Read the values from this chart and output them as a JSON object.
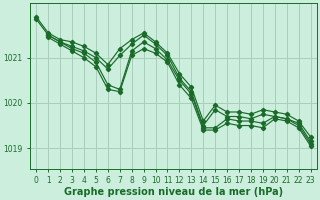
{
  "background_color": "#cceedd",
  "grid_color": "#aaccbb",
  "line_color": "#1a6b2a",
  "title": "Graphe pression niveau de la mer (hPa)",
  "title_fontsize": 7,
  "tick_fontsize": 5.5,
  "xlim": [
    -0.5,
    23.5
  ],
  "ylim": [
    1018.55,
    1022.2
  ],
  "yticks": [
    1019,
    1020,
    1021
  ],
  "xticks": [
    0,
    1,
    2,
    3,
    4,
    5,
    6,
    7,
    8,
    9,
    10,
    11,
    12,
    13,
    14,
    15,
    16,
    17,
    18,
    19,
    20,
    21,
    22,
    23
  ],
  "series": [
    {
      "x": [
        0,
        1,
        2,
        3,
        4,
        5,
        6,
        7,
        8,
        9,
        10,
        11,
        12,
        13,
        14,
        15,
        16,
        17,
        18,
        19,
        20,
        21,
        22,
        23
      ],
      "y": [
        1021.9,
        1021.55,
        1021.4,
        1021.35,
        1021.25,
        1021.1,
        1020.85,
        1021.2,
        1021.4,
        1021.55,
        1021.35,
        1021.1,
        1020.65,
        1020.35,
        1019.6,
        1019.95,
        1019.8,
        1019.8,
        1019.75,
        1019.85,
        1019.8,
        1019.75,
        1019.6,
        1019.25
      ]
    },
    {
      "x": [
        0,
        1,
        2,
        3,
        4,
        5,
        6,
        7,
        8,
        9,
        10,
        11,
        12,
        13,
        14,
        15,
        16,
        17,
        18,
        19,
        20,
        21,
        22,
        23
      ],
      "y": [
        1021.85,
        1021.5,
        1021.35,
        1021.25,
        1021.15,
        1021.0,
        1020.75,
        1021.05,
        1021.3,
        1021.5,
        1021.3,
        1021.05,
        1020.55,
        1020.25,
        1019.5,
        1019.85,
        1019.7,
        1019.7,
        1019.65,
        1019.75,
        1019.7,
        1019.65,
        1019.55,
        1019.15
      ]
    },
    {
      "x": [
        1,
        2,
        3,
        4,
        5,
        6,
        7,
        8,
        9,
        10,
        11,
        12,
        13,
        14,
        15,
        16,
        17,
        18,
        19,
        20,
        21,
        22,
        23
      ],
      "y": [
        1021.5,
        1021.35,
        1021.2,
        1021.1,
        1020.9,
        1020.4,
        1020.3,
        1021.15,
        1021.35,
        1021.2,
        1020.95,
        1020.5,
        1020.2,
        1019.45,
        1019.45,
        1019.65,
        1019.6,
        1019.6,
        1019.55,
        1019.7,
        1019.65,
        1019.5,
        1019.1
      ]
    },
    {
      "x": [
        1,
        2,
        3,
        4,
        5,
        6,
        7,
        8,
        9,
        10,
        11,
        12,
        13,
        14,
        15,
        16,
        17,
        18,
        19,
        20,
        21,
        22,
        23
      ],
      "y": [
        1021.45,
        1021.3,
        1021.15,
        1021.0,
        1020.8,
        1020.3,
        1020.25,
        1021.05,
        1021.2,
        1021.1,
        1020.9,
        1020.4,
        1020.1,
        1019.4,
        1019.4,
        1019.55,
        1019.5,
        1019.5,
        1019.45,
        1019.65,
        1019.6,
        1019.45,
        1019.05
      ]
    }
  ]
}
